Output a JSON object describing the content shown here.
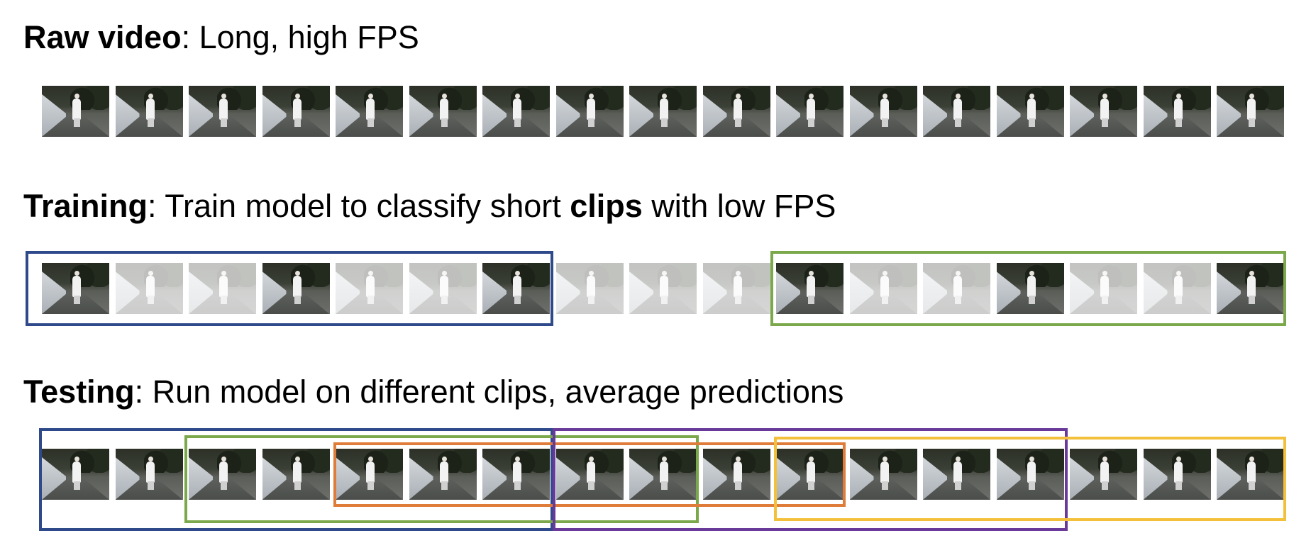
{
  "sections": {
    "raw": {
      "title_bold": "Raw video",
      "title_rest": ": Long, high FPS"
    },
    "training": {
      "title_bold": "Training",
      "title_mid": ": Train model to classify short ",
      "title_bold2": "clips",
      "title_rest": " with low FPS"
    },
    "testing": {
      "title_bold": "Testing",
      "title_rest": ": Run model on different clips, average predictions"
    }
  },
  "frame_count": 17,
  "training_highlighted_frames": [
    0,
    3,
    6,
    10,
    13,
    16
  ],
  "colors": {
    "blue": "#2e4a8a",
    "green": "#7aa84a",
    "orange": "#e07c3a",
    "purple": "#6a3a9a",
    "yellow": "#f2c03a"
  },
  "training_clips": [
    {
      "color": "blue",
      "start_frame": 0,
      "end_frame": 6
    },
    {
      "color": "green",
      "start_frame": 10,
      "end_frame": 16
    }
  ],
  "testing_clips": [
    {
      "color": "blue",
      "start_frame": 0,
      "end_frame": 6
    },
    {
      "color": "green",
      "start_frame": 2,
      "end_frame": 8
    },
    {
      "color": "orange",
      "start_frame": 4,
      "end_frame": 10
    },
    {
      "color": "purple",
      "start_frame": 7,
      "end_frame": 13
    },
    {
      "color": "yellow",
      "start_frame": 10,
      "end_frame": 16
    }
  ]
}
